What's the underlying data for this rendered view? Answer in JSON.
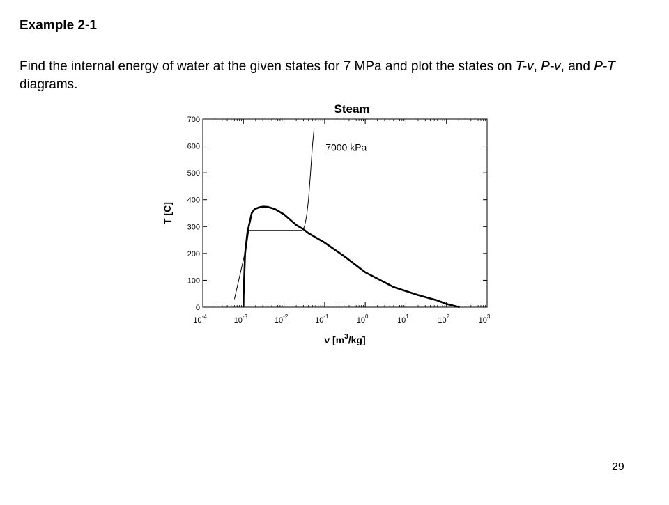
{
  "slide": {
    "heading": "Example 2-1",
    "problem_parts": [
      "Find the internal energy of water at the given states for 7 MPa and plot the states on ",
      "T-v",
      ", ",
      "P-v",
      ", and ",
      "P-T",
      " diagrams."
    ],
    "page_number": "29"
  },
  "chart_data": {
    "type": "line",
    "title": "Steam",
    "xlabel": "v [m3/kg]",
    "xlabel_parts": [
      "v [m",
      "3",
      "/kg]"
    ],
    "ylabel": "T [C]",
    "xscale": "log",
    "xlim": [
      0.0001,
      1000
    ],
    "ylim": [
      0,
      700
    ],
    "grid": false,
    "x_ticks": [
      {
        "base": "10",
        "exp": "-4",
        "value": 0.0001
      },
      {
        "base": "10",
        "exp": "-3",
        "value": 0.001
      },
      {
        "base": "10",
        "exp": "-2",
        "value": 0.01
      },
      {
        "base": "10",
        "exp": "-1",
        "value": 0.1
      },
      {
        "base": "10",
        "exp": "0",
        "value": 1
      },
      {
        "base": "10",
        "exp": "1",
        "value": 10
      },
      {
        "base": "10",
        "exp": "2",
        "value": 100
      },
      {
        "base": "10",
        "exp": "3",
        "value": 1000
      }
    ],
    "y_ticks": [
      0,
      100,
      200,
      300,
      400,
      500,
      600,
      700
    ],
    "annotations": [
      {
        "text": "7000 kPa",
        "x": 0.09,
        "y": 595
      }
    ],
    "series": [
      {
        "role": "saturation-dome",
        "line_weight": "thick",
        "points": [
          [
            0.001,
            0
          ],
          [
            0.00101,
            40
          ],
          [
            0.00104,
            100
          ],
          [
            0.0011,
            200
          ],
          [
            0.00125,
            275
          ],
          [
            0.00135,
            300
          ],
          [
            0.00145,
            320
          ],
          [
            0.0016,
            350
          ],
          [
            0.0019,
            365
          ],
          [
            0.0025,
            372
          ],
          [
            0.0031,
            374
          ],
          [
            0.004,
            373
          ],
          [
            0.006,
            365
          ],
          [
            0.01,
            345
          ],
          [
            0.02,
            306
          ],
          [
            0.03,
            290
          ],
          [
            0.04,
            275
          ],
          [
            0.1,
            240
          ],
          [
            0.3,
            190
          ],
          [
            1,
            130
          ],
          [
            5,
            75
          ],
          [
            20,
            45
          ],
          [
            60,
            25
          ],
          [
            100,
            12
          ],
          [
            210,
            0
          ]
        ]
      },
      {
        "role": "isobar",
        "name": "7000 kPa",
        "line_weight": "thin",
        "points": [
          [
            0.0006,
            30
          ],
          [
            0.00085,
            130
          ],
          [
            0.0012,
            230
          ],
          [
            0.00135,
            286
          ],
          [
            0.0275,
            286
          ],
          [
            0.032,
            300
          ],
          [
            0.036,
            340
          ],
          [
            0.04,
            400
          ],
          [
            0.045,
            500
          ],
          [
            0.05,
            600
          ],
          [
            0.055,
            665
          ]
        ]
      }
    ]
  }
}
